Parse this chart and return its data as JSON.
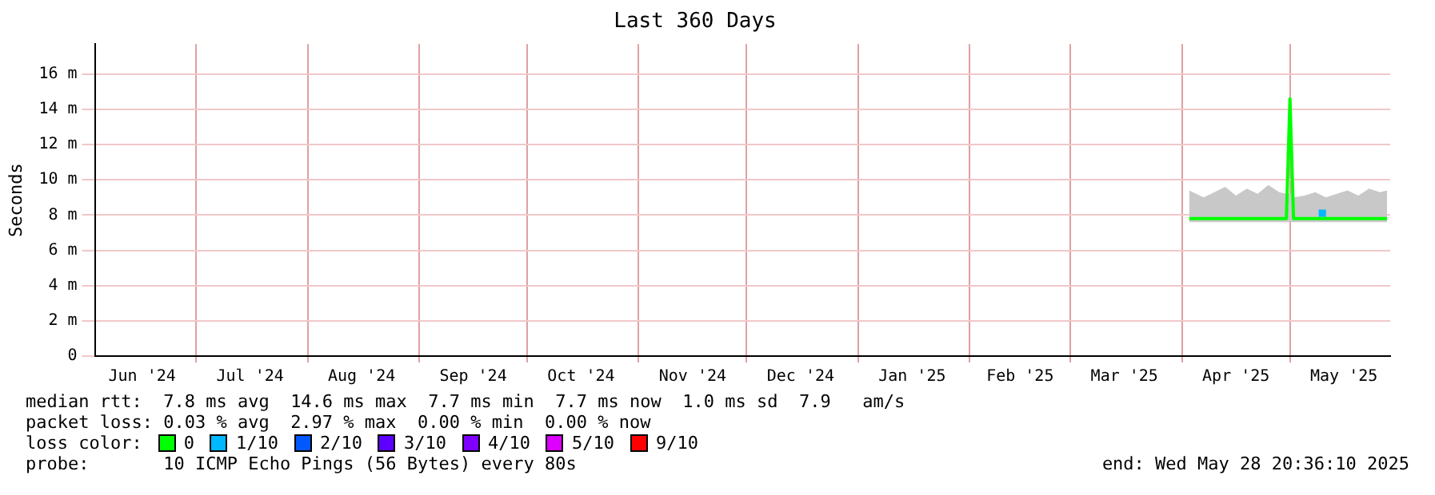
{
  "chart_data": {
    "type": "line",
    "title": "Last 360 Days",
    "ylabel": "Seconds",
    "legend_title": "loss color:",
    "legend": "bottom",
    "grid": true,
    "xlim": [
      "2024-06-02T20:36",
      "2025-05-28T20:36"
    ],
    "xticks": [
      {
        "value": "2024-06-16",
        "label": "Jun '24"
      },
      {
        "value": "2024-07-01",
        "label": null
      },
      {
        "value": "2024-07-16",
        "label": "Jul '24"
      },
      {
        "value": "2024-08-01",
        "label": null
      },
      {
        "value": "2024-08-16",
        "label": "Aug '24"
      },
      {
        "value": "2024-09-01",
        "label": null
      },
      {
        "value": "2024-09-16",
        "label": "Sep '24"
      },
      {
        "value": "2024-10-01",
        "label": null
      },
      {
        "value": "2024-10-16",
        "label": "Oct '24"
      },
      {
        "value": "2024-11-01",
        "label": null
      },
      {
        "value": "2024-11-16",
        "label": "Nov '24"
      },
      {
        "value": "2024-12-01",
        "label": null
      },
      {
        "value": "2024-12-16",
        "label": "Dec '24"
      },
      {
        "value": "2025-01-01",
        "label": null
      },
      {
        "value": "2025-01-16",
        "label": "Jan '25"
      },
      {
        "value": "2025-02-01",
        "label": null
      },
      {
        "value": "2025-02-15",
        "label": "Feb '25"
      },
      {
        "value": "2025-03-01",
        "label": null
      },
      {
        "value": "2025-03-16",
        "label": "Mar '25"
      },
      {
        "value": "2025-04-01",
        "label": null
      },
      {
        "value": "2025-04-16",
        "label": "Apr '25"
      },
      {
        "value": "2025-05-01",
        "label": null
      },
      {
        "value": "2025-05-16",
        "label": "May '25"
      }
    ],
    "ylim": [
      0,
      17.7
    ],
    "yticks": [
      {
        "value": 0,
        "label": "0"
      },
      {
        "value": 2,
        "label": "2 m"
      },
      {
        "value": 4,
        "label": "4 m"
      },
      {
        "value": 6,
        "label": "6 m"
      },
      {
        "value": 8,
        "label": "8 m"
      },
      {
        "value": 10,
        "label": "10 m"
      },
      {
        "value": 12,
        "label": "12 m"
      },
      {
        "value": 14,
        "label": "14 m"
      },
      {
        "value": 16,
        "label": "16 m"
      }
    ],
    "series": [
      {
        "name": "0",
        "type": "line",
        "color": "#00ff00",
        "x": [
          "2025-04-03",
          "2025-04-07",
          "2025-04-10",
          "2025-04-13",
          "2025-04-16",
          "2025-04-19",
          "2025-04-22",
          "2025-04-25",
          "2025-04-28",
          "2025-04-30",
          "2025-05-01",
          "2025-05-02",
          "2025-05-05",
          "2025-05-08",
          "2025-05-11",
          "2025-05-14",
          "2025-05-17",
          "2025-05-20",
          "2025-05-23",
          "2025-05-26",
          "2025-05-28"
        ],
        "values": [
          7.8,
          7.8,
          7.8,
          7.8,
          7.8,
          7.8,
          7.8,
          7.8,
          7.8,
          7.8,
          14.6,
          7.8,
          7.8,
          7.8,
          7.8,
          7.8,
          7.8,
          7.8,
          7.8,
          7.8,
          7.8
        ],
        "lower": [
          7.6,
          7.6,
          7.6,
          7.6,
          7.6,
          7.6,
          7.6,
          7.6,
          7.6,
          7.6,
          7.6,
          7.6,
          7.6,
          7.6,
          7.6,
          7.6,
          7.6,
          7.6,
          7.6,
          7.6,
          7.6
        ],
        "upper": [
          9.4,
          9.0,
          9.3,
          9.6,
          9.1,
          9.5,
          9.2,
          9.7,
          9.3,
          9.2,
          9.2,
          9.0,
          9.1,
          9.3,
          9.0,
          9.2,
          9.4,
          9.1,
          9.5,
          9.3,
          9.4
        ]
      },
      {
        "name": "1/10",
        "type": "scatter",
        "color": "#00b8ff",
        "x": [
          "2025-05-10"
        ],
        "values": [
          8.1
        ]
      },
      {
        "name": "2/10",
        "type": "scatter",
        "color": "#0059ff"
      },
      {
        "name": "3/10",
        "type": "scatter",
        "color": "#5e00ff"
      },
      {
        "name": "4/10",
        "type": "scatter",
        "color": "#7e00ff"
      },
      {
        "name": "5/10",
        "type": "scatter",
        "color": "#dd00ff"
      },
      {
        "name": "9/10",
        "type": "scatter",
        "color": "#ff0000"
      }
    ],
    "annotations": [
      "median rtt:  7.8 ms avg  14.6 ms max  7.7 ms min  7.7 ms now  1.0 ms sd  7.9   am/s",
      "packet loss: 0.03 % avg  2.97 % max  0.00 % min  0.00 % now",
      "probe:       10 ICMP Echo Pings (56 Bytes) every 80s",
      "end: Wed May 28 20:36:10 2025"
    ]
  }
}
